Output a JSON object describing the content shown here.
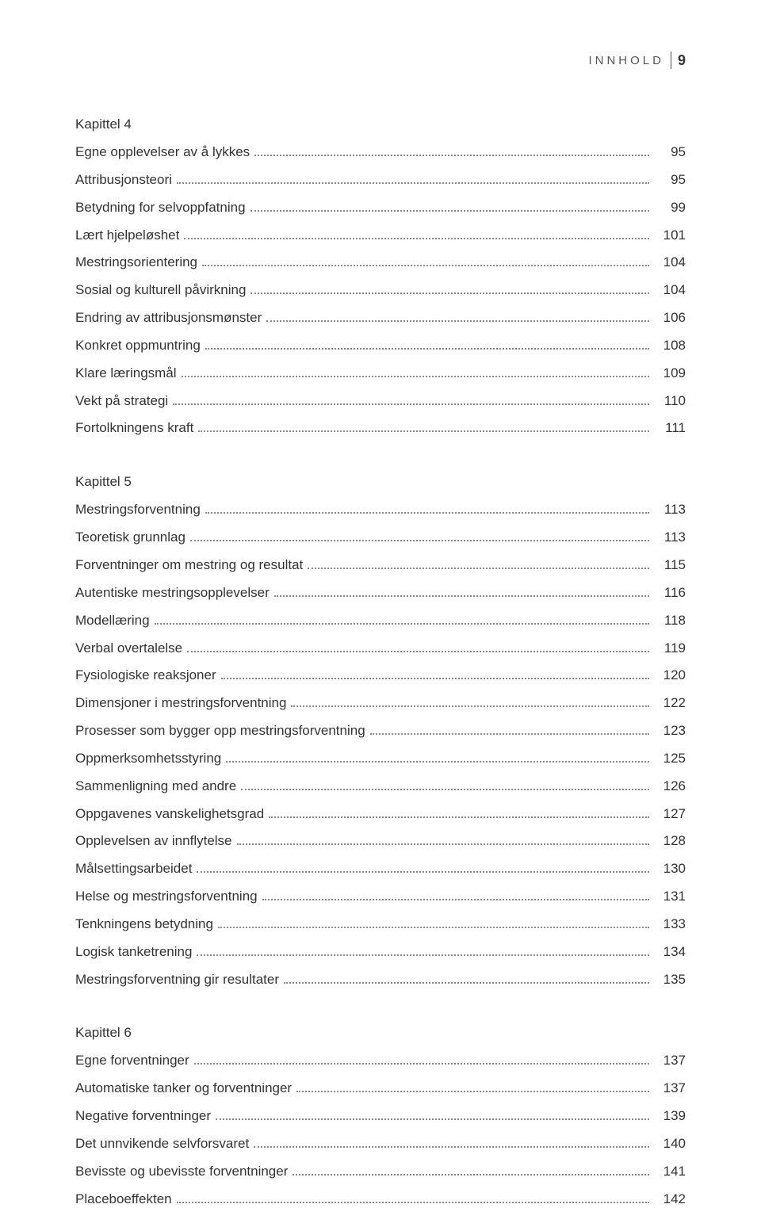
{
  "header": {
    "label": "INNHOLD",
    "page": "9"
  },
  "chapters": [
    {
      "label": "Kapittel 4",
      "entries": [
        {
          "title": "Egne opplevelser av å lykkes",
          "page": "95",
          "bold": true
        },
        {
          "title": "Attribusjonsteori",
          "page": "95"
        },
        {
          "title": "Betydning for selvoppfatning",
          "page": "99"
        },
        {
          "title": "Lært hjelpeløshet",
          "page": "101"
        },
        {
          "title": "Mestringsorientering",
          "page": "104"
        },
        {
          "title": "Sosial og kulturell påvirkning",
          "page": "104"
        },
        {
          "title": "Endring av attribusjonsmønster",
          "page": "106"
        },
        {
          "title": "Konkret oppmuntring",
          "page": "108"
        },
        {
          "title": "Klare læringsmål",
          "page": "109"
        },
        {
          "title": "Vekt på strategi",
          "page": "110"
        },
        {
          "title": "Fortolkningens kraft",
          "page": "111"
        }
      ]
    },
    {
      "label": "Kapittel 5",
      "entries": [
        {
          "title": "Mestringsforventning",
          "page": "113",
          "bold": true
        },
        {
          "title": "Teoretisk grunnlag",
          "page": "113"
        },
        {
          "title": "Forventninger om mestring og resultat",
          "page": "115"
        },
        {
          "title": "Autentiske mestringsopplevelser",
          "page": "116"
        },
        {
          "title": "Modellæring",
          "page": "118"
        },
        {
          "title": "Verbal overtalelse",
          "page": "119"
        },
        {
          "title": "Fysiologiske reaksjoner",
          "page": "120"
        },
        {
          "title": "Dimensjoner i mestringsforventning",
          "page": "122"
        },
        {
          "title": "Prosesser som bygger opp mestringsforventning",
          "page": "123"
        },
        {
          "title": "Oppmerksomhetsstyring",
          "page": "125"
        },
        {
          "title": "Sammenligning med andre",
          "page": "126"
        },
        {
          "title": "Oppgavenes vanskelighetsgrad",
          "page": "127"
        },
        {
          "title": "Opplevelsen av innflytelse",
          "page": "128"
        },
        {
          "title": "Målsettingsarbeidet",
          "page": "130"
        },
        {
          "title": "Helse og mestringsforventning",
          "page": "131"
        },
        {
          "title": "Tenkningens betydning",
          "page": "133"
        },
        {
          "title": "Logisk tanketrening",
          "page": "134"
        },
        {
          "title": "Mestringsforventning gir resultater",
          "page": "135"
        }
      ]
    },
    {
      "label": "Kapittel 6",
      "entries": [
        {
          "title": "Egne forventninger",
          "page": "137",
          "bold": true
        },
        {
          "title": "Automatiske tanker og forventninger",
          "page": "137"
        },
        {
          "title": "Negative forventninger",
          "page": "139"
        },
        {
          "title": "Det unnvikende selvforsvaret",
          "page": "140"
        },
        {
          "title": "Bevisste og ubevisste forventninger",
          "page": "141"
        },
        {
          "title": "Placeboeffekten",
          "page": "142"
        }
      ]
    }
  ]
}
